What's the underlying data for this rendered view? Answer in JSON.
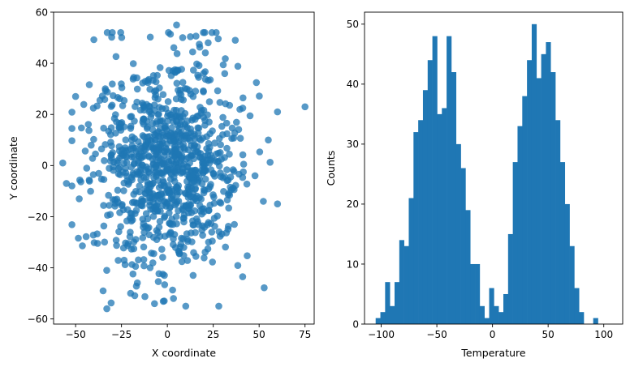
{
  "chart_data": [
    {
      "type": "scatter",
      "xlabel": "X coordinate",
      "ylabel": "Y coordinate",
      "xlim": [
        -62,
        80
      ],
      "ylim": [
        -62,
        60
      ],
      "xticks": [
        -50,
        -25,
        0,
        25,
        50,
        75
      ],
      "xtick_labels": [
        "−50",
        "−25",
        "0",
        "25",
        "50",
        "75"
      ],
      "yticks": [
        -60,
        -40,
        -20,
        0,
        20,
        40,
        60
      ],
      "ytick_labels": [
        "−60",
        "−40",
        "−20",
        "0",
        "20",
        "40",
        "60"
      ],
      "color": "#1f77b4",
      "n_points": 1000,
      "distribution": "approximately normal, centered near (0, 0), sd about 20 in x and y",
      "notable_points": [
        {
          "x": 75,
          "y": 23
        },
        {
          "x": -57,
          "y": 1
        },
        {
          "x": -55,
          "y": -7
        },
        {
          "x": -50,
          "y": 27
        },
        {
          "x": -48,
          "y": -13
        },
        {
          "x": -33,
          "y": -56
        },
        {
          "x": -35,
          "y": -49
        },
        {
          "x": -30,
          "y": 52
        },
        {
          "x": 5,
          "y": 55
        },
        {
          "x": 37,
          "y": 49
        },
        {
          "x": 60,
          "y": -15
        },
        {
          "x": 60,
          "y": 21
        },
        {
          "x": 55,
          "y": 10
        },
        {
          "x": 28,
          "y": -55
        },
        {
          "x": 10,
          "y": -55
        },
        {
          "x": -20,
          "y": -50
        }
      ]
    },
    {
      "type": "bar",
      "subtype": "histogram",
      "xlabel": "Temperature",
      "ylabel": "Counts",
      "xlim": [
        -115,
        117
      ],
      "ylim": [
        0,
        52
      ],
      "xticks": [
        -100,
        -50,
        0,
        50,
        100
      ],
      "xtick_labels": [
        "−100",
        "−50",
        "0",
        "50",
        "100"
      ],
      "yticks": [
        0,
        10,
        20,
        30,
        40,
        50
      ],
      "ytick_labels": [
        "0",
        "10",
        "20",
        "30",
        "40",
        "50"
      ],
      "color": "#1f77b4",
      "bin_start": -105,
      "bin_width": 4.25,
      "counts": [
        1,
        2,
        7,
        3,
        7,
        14,
        13,
        21,
        32,
        34,
        39,
        44,
        48,
        35,
        36,
        48,
        42,
        30,
        26,
        19,
        10,
        10,
        3,
        1,
        6,
        3,
        2,
        5,
        15,
        27,
        33,
        38,
        44,
        50,
        41,
        45,
        47,
        42,
        34,
        27,
        20,
        13,
        6,
        2,
        0,
        0,
        1
      ]
    }
  ]
}
